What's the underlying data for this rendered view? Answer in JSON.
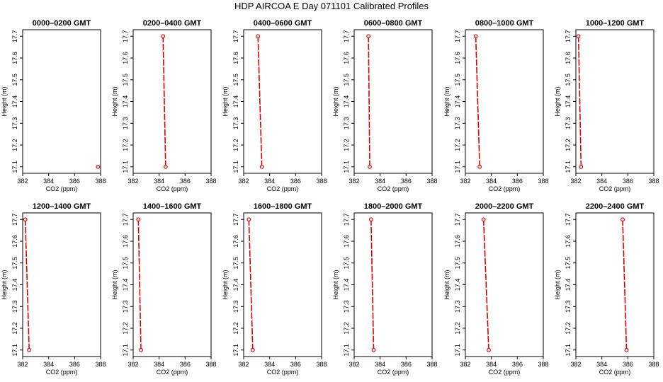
{
  "chart_data": {
    "type": "line",
    "title": "HDP AIRCOA E  Day 071101  Calibrated Profiles",
    "layout": {
      "rows": 2,
      "cols": 6
    },
    "xlabel": "CO2 (ppm)",
    "ylabel": "Height (m)",
    "xlim": [
      382,
      388
    ],
    "ylim": [
      17.07,
      17.73
    ],
    "xticks": [
      382,
      384,
      386,
      388
    ],
    "xtick_labels": [
      "382",
      "384",
      "386",
      "388"
    ],
    "yticks": [
      17.1,
      17.2,
      17.3,
      17.4,
      17.5,
      17.6,
      17.7
    ],
    "ytick_labels": [
      "17.1",
      "17.2",
      "17.3",
      "17.4",
      "17.5",
      "17.6",
      "17.7"
    ],
    "colors": {
      "series": "#e00000",
      "axis": "#000000"
    },
    "panels": [
      {
        "title": "0000–0200 GMT",
        "x": [
          387.8
        ],
        "y": [
          17.1
        ]
      },
      {
        "title": "0200–0400 GMT",
        "x": [
          384.5,
          384.3
        ],
        "y": [
          17.1,
          17.7
        ]
      },
      {
        "title": "0400–0600 GMT",
        "x": [
          383.4,
          383.1
        ],
        "y": [
          17.1,
          17.7
        ]
      },
      {
        "title": "0600–0800 GMT",
        "x": [
          383.2,
          383.1
        ],
        "y": [
          17.1,
          17.7
        ]
      },
      {
        "title": "0800–1000 GMT",
        "x": [
          383.1,
          382.8
        ],
        "y": [
          17.1,
          17.7
        ]
      },
      {
        "title": "1000–1200 GMT",
        "x": [
          382.4,
          382.2
        ],
        "y": [
          17.1,
          17.7
        ]
      },
      {
        "title": "1200–1400 GMT",
        "x": [
          382.5,
          382.2
        ],
        "y": [
          17.1,
          17.7
        ]
      },
      {
        "title": "1400–1600 GMT",
        "x": [
          382.6,
          382.4
        ],
        "y": [
          17.1,
          17.7
        ]
      },
      {
        "title": "1600–1800 GMT",
        "x": [
          382.7,
          382.4
        ],
        "y": [
          17.1,
          17.7
        ]
      },
      {
        "title": "1800–2000 GMT",
        "x": [
          383.5,
          383.3
        ],
        "y": [
          17.1,
          17.7
        ]
      },
      {
        "title": "2000–2200 GMT",
        "x": [
          383.8,
          383.4
        ],
        "y": [
          17.1,
          17.7
        ]
      },
      {
        "title": "2200–2400 GMT",
        "x": [
          385.9,
          385.6
        ],
        "y": [
          17.1,
          17.7
        ]
      }
    ]
  }
}
